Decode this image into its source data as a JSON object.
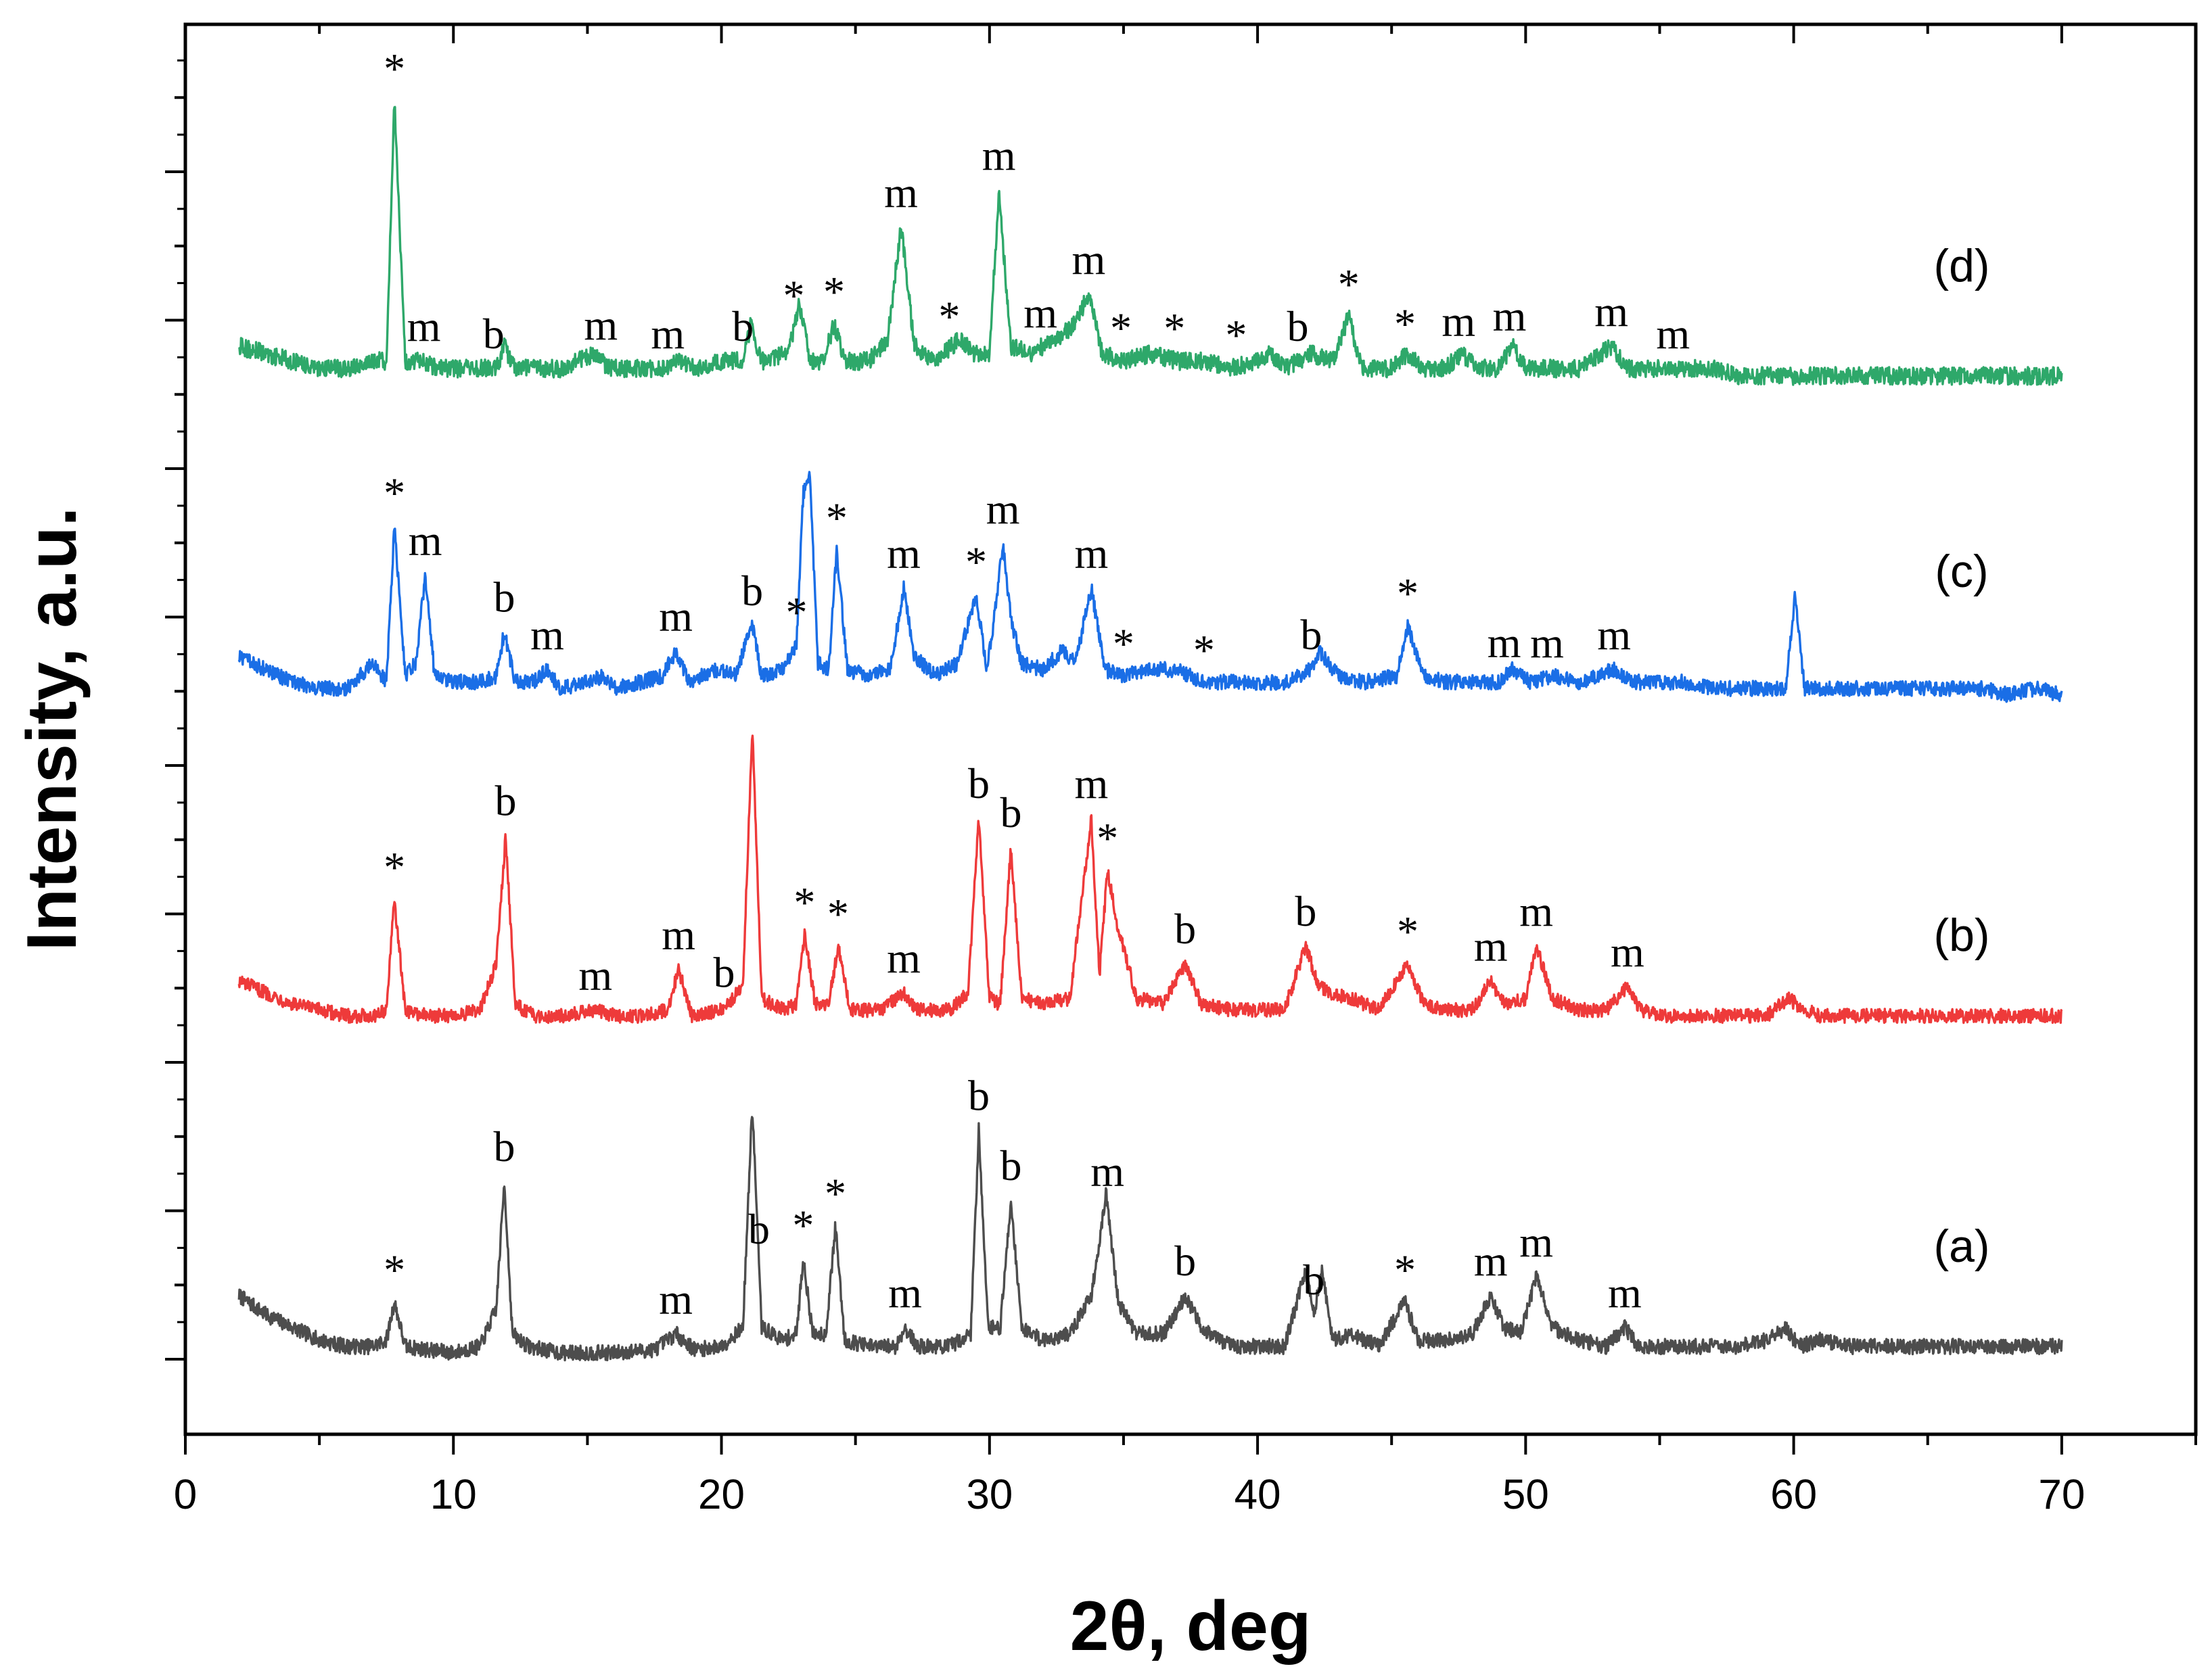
{
  "chart_data": {
    "type": "line",
    "title": "",
    "xlabel": "2θ, deg",
    "ylabel": "Intensity, a.u.",
    "xlim": [
      0,
      75
    ],
    "ylim": [
      0,
      100
    ],
    "x_ticks": [
      "0",
      "10",
      "20",
      "30",
      "40",
      "50",
      "60",
      "70"
    ],
    "y_tick_labels": "none",
    "grid": false,
    "legend": "none",
    "series": [
      {
        "name": "(a)",
        "color": "#4d4d4d",
        "x": [
          2,
          3,
          4,
          5,
          6,
          7,
          7.5,
          7.8,
          8.2,
          9,
          10,
          11,
          11.6,
          11.9,
          12.2,
          12.8,
          14,
          16,
          17.5,
          18.3,
          19,
          20,
          20.8,
          21.15,
          21.5,
          22.3,
          22.8,
          23.05,
          23.4,
          23.9,
          24.25,
          24.6,
          25.5,
          26.5,
          26.85,
          27.3,
          28.5,
          29.3,
          29.6,
          29.95,
          30.4,
          30.8,
          31.2,
          32,
          33,
          33.8,
          34.35,
          34.8,
          35.5,
          36.5,
          37.3,
          37.9,
          39,
          40,
          41,
          41.8,
          42.1,
          42.4,
          42.8,
          43.5,
          44.5,
          45.5,
          46,
          47,
          48,
          48.7,
          49.2,
          49.8,
          50.4,
          51,
          52,
          53,
          53.7,
          54.2,
          55,
          56,
          57,
          58,
          59,
          59.7,
          60.2,
          61,
          62,
          63,
          64,
          65,
          66,
          67,
          68,
          69,
          70
        ],
        "y": [
          10,
          7,
          5,
          3,
          2,
          2,
          3,
          9,
          2,
          1.5,
          1,
          2,
          8,
          28,
          4,
          2,
          1,
          1,
          1.5,
          4,
          1.5,
          2,
          5,
          40,
          5,
          3,
          4,
          16,
          4,
          4,
          21,
          3,
          2,
          2,
          5,
          2,
          2,
          4,
          36,
          5,
          5,
          25,
          5,
          3,
          4,
          10,
          26,
          9,
          4,
          4,
          10,
          5,
          2,
          2,
          2,
          14,
          7,
          14,
          3,
          4,
          2,
          9,
          3,
          3,
          4,
          10,
          5,
          4,
          13,
          5,
          3,
          2,
          5,
          2,
          2,
          2,
          2,
          2,
          3,
          5,
          2,
          3,
          2,
          2,
          2,
          2,
          2,
          2,
          2,
          2,
          2
        ]
      },
      {
        "name": "(b)",
        "color": "#ee3a3a",
        "x": [
          2,
          3,
          4,
          5,
          6,
          7,
          7.5,
          7.8,
          8.2,
          9,
          10,
          11,
          11.6,
          11.95,
          12.3,
          13,
          14,
          15.3,
          16,
          17,
          18,
          18.4,
          18.9,
          20,
          20.8,
          21.15,
          21.5,
          22.3,
          22.8,
          23.1,
          23.5,
          24,
          24.35,
          24.8,
          26,
          26.8,
          27.3,
          28.5,
          29.2,
          29.6,
          30,
          30.4,
          30.8,
          31.2,
          32,
          33,
          33.8,
          34.1,
          34.4,
          34.8,
          35.5,
          36.5,
          37.3,
          37.9,
          39,
          40,
          41,
          41.8,
          42.2,
          42.6,
          43.5,
          44.5,
          45.6,
          46.2,
          47,
          48,
          48.7,
          49.2,
          50,
          50.4,
          51,
          52,
          53,
          53.8,
          54.3,
          55,
          56,
          57,
          58,
          59,
          59.8,
          60.4,
          61,
          62,
          63,
          64,
          65,
          66,
          67,
          68,
          69,
          70
        ],
        "y": [
          9,
          7,
          5,
          4,
          3,
          3,
          4,
          23,
          4,
          3,
          3,
          4,
          12,
          34,
          5,
          3,
          3,
          4,
          3,
          3,
          4,
          11,
          3,
          4,
          8,
          53,
          6,
          4,
          5,
          17,
          5,
          5,
          15,
          4,
          4,
          7,
          4,
          4,
          7,
          37,
          6,
          5,
          32,
          6,
          5,
          6,
          37,
          10,
          28,
          18,
          6,
          5,
          12,
          5,
          4,
          4,
          4,
          15,
          9,
          7,
          6,
          4,
          12,
          5,
          4,
          4,
          9,
          5,
          6,
          15,
          6,
          4,
          4,
          8,
          4,
          3,
          3,
          3,
          3,
          3,
          6,
          4,
          3,
          3,
          3,
          3,
          3,
          3,
          3,
          3,
          3,
          3
        ]
      },
      {
        "name": "(c)",
        "color": "#1a6ee6",
        "x": [
          2,
          3,
          4,
          5,
          6,
          7,
          7.5,
          7.8,
          8.2,
          8.6,
          8.95,
          9.3,
          10,
          11,
          11.6,
          11.9,
          12.3,
          13,
          13.5,
          14,
          15,
          15.6,
          16,
          17,
          17.8,
          18.3,
          18.8,
          19.8,
          20.5,
          21.15,
          21.5,
          22.3,
          22.8,
          23.05,
          23.3,
          23.6,
          24,
          24.3,
          24.7,
          25.5,
          26.3,
          26.8,
          27.2,
          28,
          28.8,
          29.5,
          29.9,
          30.2,
          30.5,
          30.8,
          31.2,
          32,
          32.7,
          33.2,
          33.8,
          34.3,
          35,
          36,
          37,
          38,
          39,
          40,
          41,
          42,
          42.3,
          43,
          44,
          45.2,
          45.6,
          46.2,
          47,
          48,
          49,
          49.5,
          50.2,
          51,
          52,
          53.3,
          54,
          55,
          56,
          57,
          58,
          59,
          59.7,
          60.05,
          60.4,
          61,
          62,
          63,
          64,
          65,
          66,
          67,
          68,
          69,
          70
        ],
        "y": [
          8,
          6,
          4,
          3,
          3,
          7,
          4,
          29,
          5,
          7,
          21,
          5,
          4,
          4,
          5,
          12,
          4,
          4,
          6,
          3,
          4,
          5,
          3,
          4,
          5,
          9,
          4,
          6,
          5,
          13,
          5,
          6,
          10,
          34,
          37,
          7,
          6,
          25,
          6,
          5,
          6,
          19,
          8,
          5,
          7,
          18,
          6,
          15,
          26,
          14,
          7,
          6,
          9,
          7,
          19,
          6,
          5,
          6,
          6,
          4,
          4,
          4,
          4,
          6,
          9,
          5,
          4,
          5,
          13,
          5,
          4,
          4,
          4,
          6,
          4,
          5,
          4,
          6,
          4,
          4,
          4,
          3,
          3,
          3,
          3,
          18,
          3,
          3,
          3,
          3,
          3,
          3,
          3,
          3,
          2,
          3,
          2
        ]
      },
      {
        "name": "(d)",
        "color": "#2ea86a",
        "x": [
          2,
          3,
          4,
          5,
          6,
          7,
          7.5,
          7.8,
          8.2,
          8.9,
          9.4,
          10,
          11,
          11.6,
          11.9,
          12.3,
          13,
          14,
          15.3,
          15.8,
          17,
          18,
          18.4,
          19,
          20,
          20.8,
          21.1,
          21.5,
          22.5,
          22.9,
          23.3,
          23.8,
          24.2,
          24.6,
          25.5,
          26.2,
          26.7,
          27.2,
          28,
          28.9,
          29.4,
          30,
          30.35,
          30.8,
          31.5,
          32.5,
          33.2,
          33.7,
          34.2,
          35,
          36,
          37,
          38,
          39,
          40,
          40.5,
          41,
          42,
          42.8,
          43.4,
          43.9,
          45,
          45.6,
          46.2,
          47,
          47.6,
          48.2,
          49,
          49.5,
          50,
          51,
          52,
          53.2,
          53.8,
          54.5,
          55.5,
          56,
          57,
          58,
          59,
          60,
          61,
          62,
          63,
          64,
          65,
          66,
          67,
          68,
          69,
          70
        ],
        "y": [
          5,
          4,
          3,
          2,
          2,
          3,
          3,
          38,
          3,
          3,
          2,
          2,
          2,
          2,
          5,
          2,
          2,
          2,
          4,
          2,
          2,
          2,
          3,
          2,
          3,
          3,
          8,
          3,
          4,
          11,
          3,
          3,
          8,
          3,
          3,
          6,
          21,
          5,
          3,
          6,
          4,
          4,
          26,
          5,
          4,
          6,
          8,
          12,
          4,
          3,
          4,
          3,
          3,
          2,
          3,
          4,
          2,
          4,
          3,
          9,
          2,
          2,
          4,
          2,
          2,
          4,
          2,
          2,
          5,
          2,
          2,
          2,
          5,
          2,
          2,
          2,
          2,
          2,
          1,
          1,
          1,
          1,
          1,
          1,
          1,
          1,
          1,
          1,
          1,
          1,
          1
        ]
      }
    ],
    "annotations": [
      {
        "series": "(a)",
        "peaks": [
          {
            "x": 7.8,
            "text": "*"
          },
          {
            "x": 11.9,
            "text": "b"
          },
          {
            "x": 18.3,
            "text": "m"
          },
          {
            "x": 21.4,
            "text": "b"
          },
          {
            "x": 23.05,
            "text": "*"
          },
          {
            "x": 24.25,
            "text": "*"
          },
          {
            "x": 26.85,
            "text": "m"
          },
          {
            "x": 29.6,
            "text": "b"
          },
          {
            "x": 30.8,
            "text": "b"
          },
          {
            "x": 34.4,
            "text": "m"
          },
          {
            "x": 37.3,
            "text": "b"
          },
          {
            "x": 42.1,
            "text": "b"
          },
          {
            "x": 45.5,
            "text": "*"
          },
          {
            "x": 48.7,
            "text": "m"
          },
          {
            "x": 50.4,
            "text": "m"
          },
          {
            "x": 53.7,
            "text": "m"
          }
        ]
      },
      {
        "series": "(b)",
        "peaks": [
          {
            "x": 7.8,
            "text": "*"
          },
          {
            "x": 11.95,
            "text": "b"
          },
          {
            "x": 15.3,
            "text": "m"
          },
          {
            "x": 18.4,
            "text": "m"
          },
          {
            "x": 20.1,
            "text": "b"
          },
          {
            "x": 23.1,
            "text": "*"
          },
          {
            "x": 24.35,
            "text": "*"
          },
          {
            "x": 26.8,
            "text": "m"
          },
          {
            "x": 29.6,
            "text": "b"
          },
          {
            "x": 30.8,
            "text": "b"
          },
          {
            "x": 33.8,
            "text": "m"
          },
          {
            "x": 34.4,
            "text": "*"
          },
          {
            "x": 37.3,
            "text": "b"
          },
          {
            "x": 41.8,
            "text": "b"
          },
          {
            "x": 45.6,
            "text": "*"
          },
          {
            "x": 48.7,
            "text": "m"
          },
          {
            "x": 50.4,
            "text": "m"
          },
          {
            "x": 53.8,
            "text": "m"
          }
        ]
      },
      {
        "series": "(c)",
        "peaks": [
          {
            "x": 7.8,
            "text": "*"
          },
          {
            "x": 8.95,
            "text": "m"
          },
          {
            "x": 11.9,
            "text": "b"
          },
          {
            "x": 13.5,
            "text": "m"
          },
          {
            "x": 18.3,
            "text": "m"
          },
          {
            "x": 21.15,
            "text": "b"
          },
          {
            "x": 22.8,
            "text": "*"
          },
          {
            "x": 24.3,
            "text": "*"
          },
          {
            "x": 26.8,
            "text": "m"
          },
          {
            "x": 29.5,
            "text": "*"
          },
          {
            "x": 30.5,
            "text": "m"
          },
          {
            "x": 33.8,
            "text": "m"
          },
          {
            "x": 35,
            "text": "*"
          },
          {
            "x": 38,
            "text": "*"
          },
          {
            "x": 42,
            "text": "b"
          },
          {
            "x": 45.6,
            "text": "*"
          },
          {
            "x": 49.2,
            "text": "m"
          },
          {
            "x": 50.8,
            "text": "m"
          },
          {
            "x": 53.3,
            "text": "m"
          }
        ]
      },
      {
        "series": "(d)",
        "peaks": [
          {
            "x": 7.8,
            "text": "*"
          },
          {
            "x": 8.9,
            "text": "m"
          },
          {
            "x": 11.5,
            "text": "b"
          },
          {
            "x": 15.5,
            "text": "m"
          },
          {
            "x": 18,
            "text": "m"
          },
          {
            "x": 20.8,
            "text": "b"
          },
          {
            "x": 22.7,
            "text": "*"
          },
          {
            "x": 24.2,
            "text": "*"
          },
          {
            "x": 26.7,
            "text": "m"
          },
          {
            "x": 28.5,
            "text": "*"
          },
          {
            "x": 30.35,
            "text": "m"
          },
          {
            "x": 31.9,
            "text": "m"
          },
          {
            "x": 33.7,
            "text": "m"
          },
          {
            "x": 34.9,
            "text": "*"
          },
          {
            "x": 36.9,
            "text": "*"
          },
          {
            "x": 39.2,
            "text": "*"
          },
          {
            "x": 41.5,
            "text": "b"
          },
          {
            "x": 43.4,
            "text": "*"
          },
          {
            "x": 45.5,
            "text": "*"
          },
          {
            "x": 47.5,
            "text": "m"
          },
          {
            "x": 49.4,
            "text": "m"
          },
          {
            "x": 53.2,
            "text": "m"
          },
          {
            "x": 55.5,
            "text": "m"
          }
        ]
      }
    ]
  }
}
